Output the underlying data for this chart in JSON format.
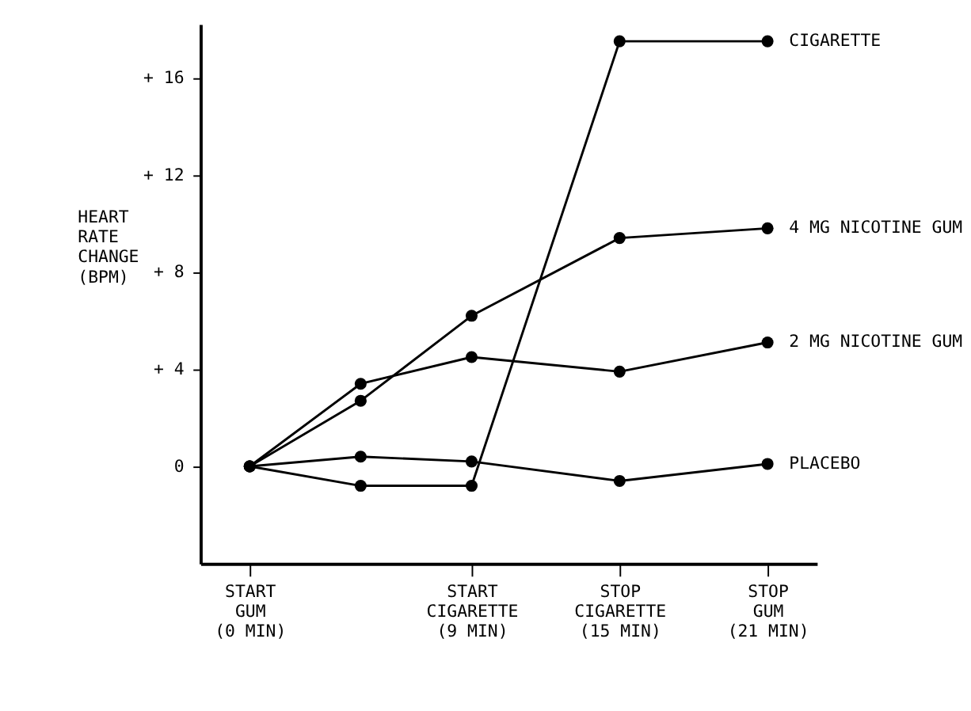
{
  "chart_data": {
    "type": "line",
    "ylabel": "HEART\nRATE\nCHANGE\n(BPM)",
    "x": [
      0,
      4.5,
      9,
      15,
      21
    ],
    "xlim": [
      -2,
      23
    ],
    "xticks": [
      {
        "value": 0,
        "label": "START\nGUM\n(0 MIN)"
      },
      {
        "value": 9,
        "label": "START\nCIGARETTE\n(9 MIN)"
      },
      {
        "value": 15,
        "label": "STOP\nCIGARETTE\n(15 MIN)"
      },
      {
        "value": 21,
        "label": "STOP\nGUM\n(21 MIN)"
      }
    ],
    "ylim": [
      -4,
      18.2
    ],
    "yticks": [
      0,
      {
        "value": 4,
        "label": "+ 4"
      },
      {
        "value": 8,
        "label": "+ 8"
      },
      {
        "value": 12,
        "label": "+ 12"
      },
      {
        "value": 16,
        "label": "+ 16"
      }
    ],
    "series": [
      {
        "name": "CIGARETTE",
        "color": "#000000",
        "values": [
          0,
          -0.8,
          -0.8,
          17.5,
          17.5
        ]
      },
      {
        "name": "4 MG NICOTINE GUM",
        "color": "#000000",
        "values": [
          0,
          2.7,
          6.2,
          9.4,
          9.8
        ]
      },
      {
        "name": "2 MG NICOTINE GUM",
        "color": "#000000",
        "values": [
          0,
          3.4,
          4.5,
          3.9,
          5.1
        ]
      },
      {
        "name": "PLACEBO",
        "color": "#000000",
        "values": [
          0,
          0.4,
          0.2,
          -0.6,
          0.1
        ]
      }
    ],
    "marker": "circle",
    "line_style": "solid",
    "grid": false,
    "legend": false
  }
}
